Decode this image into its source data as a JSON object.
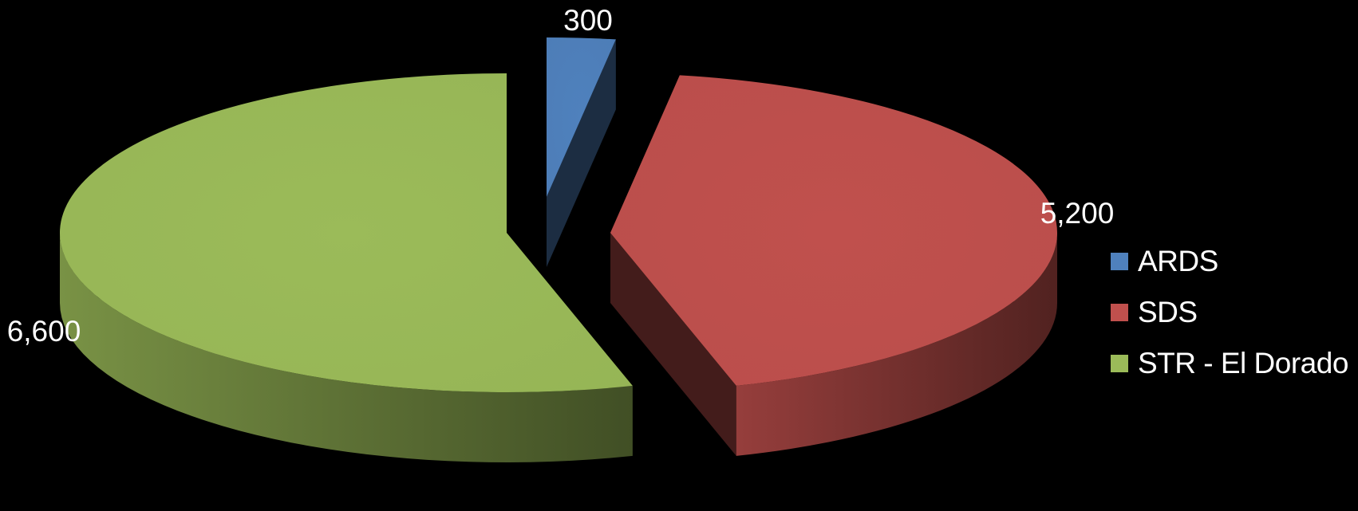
{
  "chart_data": {
    "type": "pie",
    "title": "",
    "categories": [
      "ARDS",
      "SDS",
      "STR - El Dorado"
    ],
    "values": [
      300,
      5200,
      6600
    ],
    "value_labels": [
      "300",
      "5,200",
      "6,600"
    ],
    "colors": [
      "#4f81bd",
      "#c0504d",
      "#9bbb59"
    ],
    "exploded": true,
    "three_d": true,
    "legend_position": "right"
  }
}
